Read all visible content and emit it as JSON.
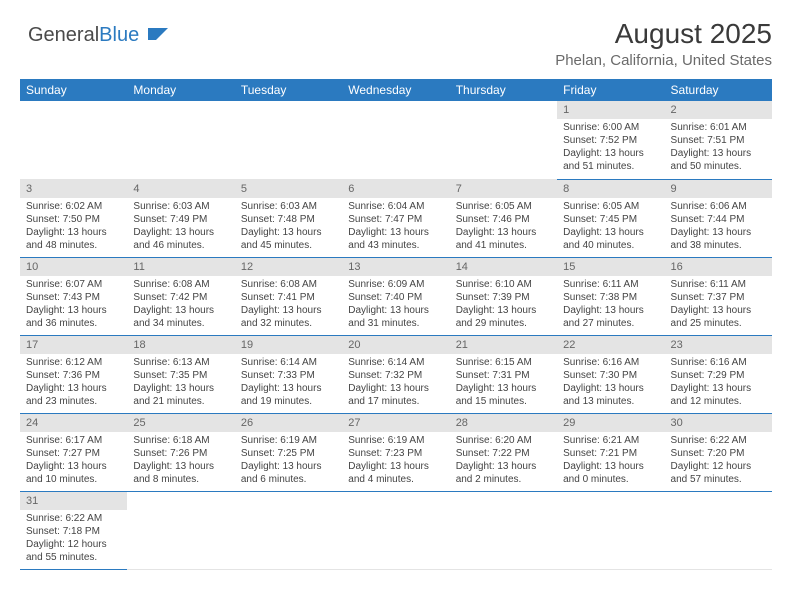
{
  "logo": {
    "text_a": "General",
    "text_b": "Blue"
  },
  "title": "August 2025",
  "subtitle": "Phelan, California, United States",
  "colors": {
    "header_bg": "#2b7ac0",
    "header_fg": "#ffffff",
    "daynum_bg": "#e4e4e4",
    "rule": "#2b7ac0"
  },
  "days_of_week": [
    "Sunday",
    "Monday",
    "Tuesday",
    "Wednesday",
    "Thursday",
    "Friday",
    "Saturday"
  ],
  "first_weekday_index": 5,
  "num_days": 31,
  "day_data": {
    "1": {
      "sunrise": "6:00 AM",
      "sunset": "7:52 PM",
      "daylight": "13 hours and 51 minutes."
    },
    "2": {
      "sunrise": "6:01 AM",
      "sunset": "7:51 PM",
      "daylight": "13 hours and 50 minutes."
    },
    "3": {
      "sunrise": "6:02 AM",
      "sunset": "7:50 PM",
      "daylight": "13 hours and 48 minutes."
    },
    "4": {
      "sunrise": "6:03 AM",
      "sunset": "7:49 PM",
      "daylight": "13 hours and 46 minutes."
    },
    "5": {
      "sunrise": "6:03 AM",
      "sunset": "7:48 PM",
      "daylight": "13 hours and 45 minutes."
    },
    "6": {
      "sunrise": "6:04 AM",
      "sunset": "7:47 PM",
      "daylight": "13 hours and 43 minutes."
    },
    "7": {
      "sunrise": "6:05 AM",
      "sunset": "7:46 PM",
      "daylight": "13 hours and 41 minutes."
    },
    "8": {
      "sunrise": "6:05 AM",
      "sunset": "7:45 PM",
      "daylight": "13 hours and 40 minutes."
    },
    "9": {
      "sunrise": "6:06 AM",
      "sunset": "7:44 PM",
      "daylight": "13 hours and 38 minutes."
    },
    "10": {
      "sunrise": "6:07 AM",
      "sunset": "7:43 PM",
      "daylight": "13 hours and 36 minutes."
    },
    "11": {
      "sunrise": "6:08 AM",
      "sunset": "7:42 PM",
      "daylight": "13 hours and 34 minutes."
    },
    "12": {
      "sunrise": "6:08 AM",
      "sunset": "7:41 PM",
      "daylight": "13 hours and 32 minutes."
    },
    "13": {
      "sunrise": "6:09 AM",
      "sunset": "7:40 PM",
      "daylight": "13 hours and 31 minutes."
    },
    "14": {
      "sunrise": "6:10 AM",
      "sunset": "7:39 PM",
      "daylight": "13 hours and 29 minutes."
    },
    "15": {
      "sunrise": "6:11 AM",
      "sunset": "7:38 PM",
      "daylight": "13 hours and 27 minutes."
    },
    "16": {
      "sunrise": "6:11 AM",
      "sunset": "7:37 PM",
      "daylight": "13 hours and 25 minutes."
    },
    "17": {
      "sunrise": "6:12 AM",
      "sunset": "7:36 PM",
      "daylight": "13 hours and 23 minutes."
    },
    "18": {
      "sunrise": "6:13 AM",
      "sunset": "7:35 PM",
      "daylight": "13 hours and 21 minutes."
    },
    "19": {
      "sunrise": "6:14 AM",
      "sunset": "7:33 PM",
      "daylight": "13 hours and 19 minutes."
    },
    "20": {
      "sunrise": "6:14 AM",
      "sunset": "7:32 PM",
      "daylight": "13 hours and 17 minutes."
    },
    "21": {
      "sunrise": "6:15 AM",
      "sunset": "7:31 PM",
      "daylight": "13 hours and 15 minutes."
    },
    "22": {
      "sunrise": "6:16 AM",
      "sunset": "7:30 PM",
      "daylight": "13 hours and 13 minutes."
    },
    "23": {
      "sunrise": "6:16 AM",
      "sunset": "7:29 PM",
      "daylight": "13 hours and 12 minutes."
    },
    "24": {
      "sunrise": "6:17 AM",
      "sunset": "7:27 PM",
      "daylight": "13 hours and 10 minutes."
    },
    "25": {
      "sunrise": "6:18 AM",
      "sunset": "7:26 PM",
      "daylight": "13 hours and 8 minutes."
    },
    "26": {
      "sunrise": "6:19 AM",
      "sunset": "7:25 PM",
      "daylight": "13 hours and 6 minutes."
    },
    "27": {
      "sunrise": "6:19 AM",
      "sunset": "7:23 PM",
      "daylight": "13 hours and 4 minutes."
    },
    "28": {
      "sunrise": "6:20 AM",
      "sunset": "7:22 PM",
      "daylight": "13 hours and 2 minutes."
    },
    "29": {
      "sunrise": "6:21 AM",
      "sunset": "7:21 PM",
      "daylight": "13 hours and 0 minutes."
    },
    "30": {
      "sunrise": "6:22 AM",
      "sunset": "7:20 PM",
      "daylight": "12 hours and 57 minutes."
    },
    "31": {
      "sunrise": "6:22 AM",
      "sunset": "7:18 PM",
      "daylight": "12 hours and 55 minutes."
    }
  },
  "labels": {
    "sunrise": "Sunrise:",
    "sunset": "Sunset:",
    "daylight": "Daylight:"
  }
}
